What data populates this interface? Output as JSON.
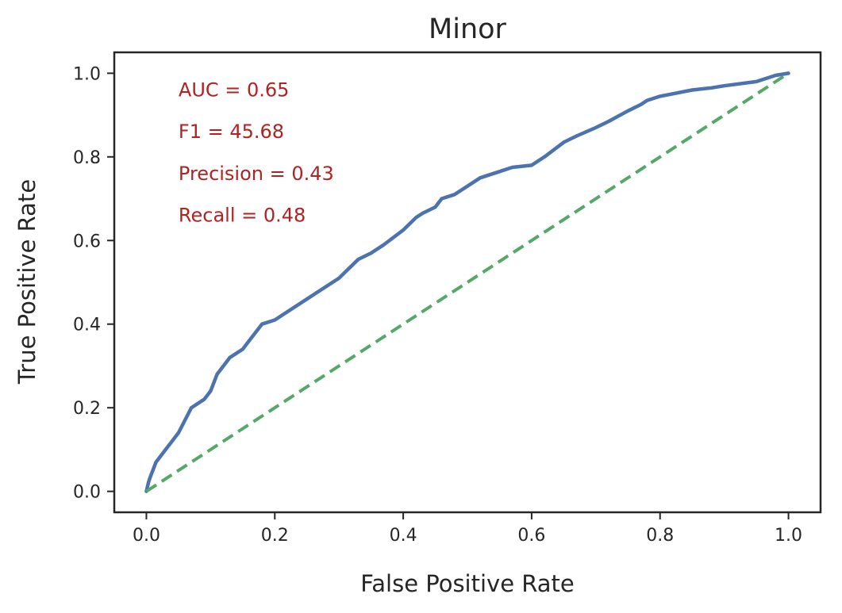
{
  "chart_data": {
    "type": "line",
    "title": "Minor",
    "xlabel": "False Positive Rate",
    "ylabel": "True Positive Rate",
    "xlim": [
      -0.05,
      1.05
    ],
    "ylim": [
      -0.05,
      1.05
    ],
    "xticks": [
      0.0,
      0.2,
      0.4,
      0.6,
      0.8,
      1.0
    ],
    "yticks": [
      0.0,
      0.2,
      0.4,
      0.6,
      0.8,
      1.0
    ],
    "xtick_labels": [
      "0.0",
      "0.2",
      "0.4",
      "0.6",
      "0.8",
      "1.0"
    ],
    "ytick_labels": [
      "0.0",
      "0.2",
      "0.4",
      "0.6",
      "0.8",
      "1.0"
    ],
    "grid": false,
    "series": [
      {
        "color": "#4c72b0",
        "style": "solid",
        "x": [
          0,
          0.003,
          0.005,
          0.01,
          0.015,
          0.02,
          0.03,
          0.04,
          0.05,
          0.06,
          0.07,
          0.08,
          0.09,
          0.1,
          0.11,
          0.12,
          0.13,
          0.14,
          0.15,
          0.16,
          0.18,
          0.2,
          0.22,
          0.25,
          0.28,
          0.3,
          0.32,
          0.33,
          0.35,
          0.37,
          0.4,
          0.42,
          0.43,
          0.45,
          0.46,
          0.48,
          0.5,
          0.52,
          0.55,
          0.57,
          0.6,
          0.62,
          0.65,
          0.67,
          0.7,
          0.72,
          0.75,
          0.77,
          0.78,
          0.8,
          0.85,
          0.88,
          0.9,
          0.95,
          0.97,
          0.98,
          1.0
        ],
        "y": [
          0,
          0.02,
          0.03,
          0.05,
          0.07,
          0.08,
          0.1,
          0.12,
          0.14,
          0.17,
          0.2,
          0.21,
          0.22,
          0.24,
          0.28,
          0.3,
          0.32,
          0.33,
          0.34,
          0.36,
          0.4,
          0.41,
          0.43,
          0.46,
          0.49,
          0.51,
          0.54,
          0.555,
          0.57,
          0.59,
          0.625,
          0.655,
          0.665,
          0.68,
          0.7,
          0.71,
          0.73,
          0.75,
          0.765,
          0.775,
          0.78,
          0.8,
          0.835,
          0.85,
          0.87,
          0.885,
          0.91,
          0.925,
          0.935,
          0.945,
          0.96,
          0.965,
          0.97,
          0.98,
          0.99,
          0.995,
          1.0
        ]
      },
      {
        "color": "#55a868",
        "style": "dashed",
        "x": [
          0,
          1
        ],
        "y": [
          0,
          1
        ]
      }
    ],
    "annotations": [
      {
        "text": "AUC = 0.65",
        "x": 0.05,
        "y": 0.96,
        "color": "#b22222"
      },
      {
        "text": "F1 = 45.68",
        "x": 0.05,
        "y": 0.86,
        "color": "#b22222"
      },
      {
        "text": "Precision = 0.43",
        "x": 0.05,
        "y": 0.76,
        "color": "#b22222"
      },
      {
        "text": "Recall = 0.48",
        "x": 0.05,
        "y": 0.66,
        "color": "#b22222"
      }
    ]
  }
}
